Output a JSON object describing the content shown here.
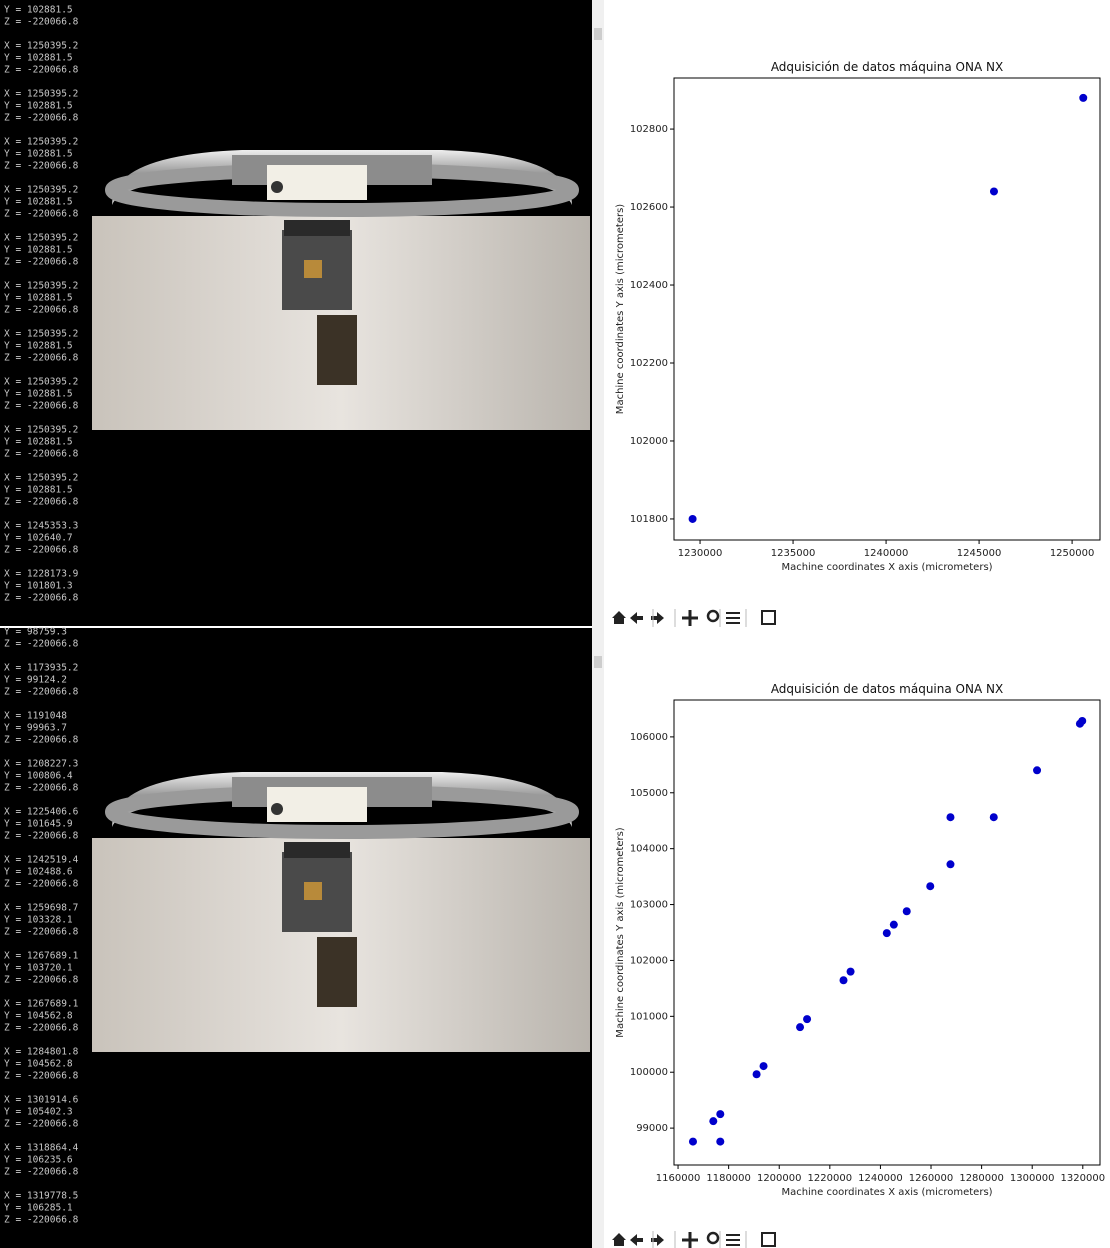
{
  "terminals": [
    {
      "head": [
        "Y = 102881.5",
        "Z = -220066.8"
      ],
      "groups": [
        [
          "X = 1250395.2",
          "Y = 102881.5",
          "Z = -220066.8"
        ],
        [
          "X = 1250395.2",
          "Y = 102881.5",
          "Z = -220066.8"
        ],
        [
          "X = 1250395.2",
          "Y = 102881.5",
          "Z = -220066.8"
        ],
        [
          "X = 1250395.2",
          "Y = 102881.5",
          "Z = -220066.8"
        ],
        [
          "X = 1250395.2",
          "Y = 102881.5",
          "Z = -220066.8"
        ],
        [
          "X = 1250395.2",
          "Y = 102881.5",
          "Z = -220066.8"
        ],
        [
          "X = 1250395.2",
          "Y = 102881.5",
          "Z = -220066.8"
        ],
        [
          "X = 1250395.2",
          "Y = 102881.5",
          "Z = -220066.8"
        ],
        [
          "X = 1250395.2",
          "Y = 102881.5",
          "Z = -220066.8"
        ],
        [
          "X = 1250395.2",
          "Y = 102881.5",
          "Z = -220066.8"
        ],
        [
          "X = 1245353.3",
          "Y = 102640.7",
          "Z = -220066.8"
        ],
        [
          "X = 1228173.9",
          "Y = 101801.3",
          "Z = -220066.8"
        ]
      ]
    },
    {
      "head": [
        "Y = 98759.3",
        "Z = -220066.8"
      ],
      "groups": [
        [
          "X = 1173935.2",
          "Y = 99124.2",
          "Z = -220066.8"
        ],
        [
          "X = 1191048",
          "Y = 99963.7",
          "Z = -220066.8"
        ],
        [
          "X = 1208227.3",
          "Y = 100806.4",
          "Z = -220066.8"
        ],
        [
          "X = 1225406.6",
          "Y = 101645.9",
          "Z = -220066.8"
        ],
        [
          "X = 1242519.4",
          "Y = 102488.6",
          "Z = -220066.8"
        ],
        [
          "X = 1259698.7",
          "Y = 103328.1",
          "Z = -220066.8"
        ],
        [
          "X = 1267689.1",
          "Y = 103720.1",
          "Z = -220066.8"
        ],
        [
          "X = 1267689.1",
          "Y = 104562.8",
          "Z = -220066.8"
        ],
        [
          "X = 1284801.8",
          "Y = 104562.8",
          "Z = -220066.8"
        ],
        [
          "X = 1301914.6",
          "Y = 105402.3",
          "Z = -220066.8"
        ],
        [
          "X = 1318864.4",
          "Y = 106235.6",
          "Z = -220066.8"
        ],
        [
          "X = 1319778.5",
          "Y = 106285.1",
          "Z = -220066.8"
        ]
      ]
    }
  ],
  "chart_data": [
    {
      "type": "scatter",
      "title": "Adquisición de datos máquina ONA NX",
      "x_label": "Machine coordinates X axis (micrometers)",
      "y_label": "Machine coordinates Y axis (micrometers)",
      "color": "#0000cc",
      "x": [
        1229600,
        1245800,
        1250600
      ],
      "values": [
        101800,
        102640,
        102880
      ],
      "xlim": [
        1228600,
        1251500
      ],
      "ylim": [
        101746,
        102931
      ],
      "xticks": [
        1230000,
        1235000,
        1240000,
        1245000,
        1250000
      ],
      "yticks": [
        101800,
        102000,
        102200,
        102400,
        102600,
        102800
      ]
    },
    {
      "type": "scatter",
      "title": "Adquisición de datos máquina ONA NX",
      "x_label": "Machine coordinates X axis (micrometers)",
      "y_label": "Machine coordinates Y axis (micrometers)",
      "color": "#0000cc",
      "x": [
        1165900,
        1173935.2,
        1176700,
        1176700,
        1191048,
        1193800,
        1208227.3,
        1211000,
        1225406.6,
        1228200,
        1242519.4,
        1245300,
        1250400,
        1259698.7,
        1267689.1,
        1267689.1,
        1284801.8,
        1301914.6,
        1318864.4,
        1319778.5
      ],
      "values": [
        98759.3,
        99124.2,
        99250,
        98759.3,
        99963.7,
        100110,
        100806.4,
        100950,
        101645.9,
        101800,
        102488.6,
        102640,
        102880,
        103328.1,
        103720.1,
        104562.8,
        104562.8,
        105402.3,
        106235.6,
        106285.1
      ],
      "xlim": [
        1158400,
        1326800
      ],
      "ylim": [
        98340,
        106660
      ],
      "xticks": [
        1160000,
        1180000,
        1200000,
        1220000,
        1240000,
        1260000,
        1280000,
        1300000,
        1320000
      ],
      "yticks": [
        99000,
        100000,
        101000,
        102000,
        103000,
        104000,
        105000,
        106000
      ]
    }
  ]
}
